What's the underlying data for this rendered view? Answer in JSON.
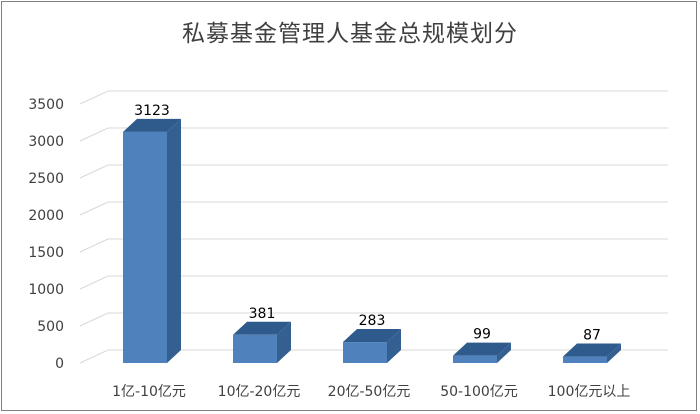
{
  "chart_data": {
    "type": "bar",
    "title": "私募基金管理人基金总规模划分",
    "xlabel": "",
    "ylabel": "",
    "categories": [
      "1亿-10亿元",
      "10亿-20亿元",
      "20亿-50亿元",
      "50-100亿元",
      "100亿元以上"
    ],
    "values": [
      3123,
      381,
      283,
      99,
      87
    ],
    "data_labels": [
      "3123",
      "381",
      "283",
      "99",
      "87"
    ],
    "ylim": [
      0,
      3500
    ],
    "yticks": [
      0,
      500,
      1000,
      1500,
      2000,
      2500,
      3000,
      3500
    ],
    "grid": true,
    "legend": "none",
    "style": "3d-column",
    "colors": {
      "bar_front": "#4f81bd",
      "bar_top": "#2f5a8c",
      "bar_side": "#345f91",
      "grid": "#d9d9d9",
      "text": "#404040"
    }
  }
}
